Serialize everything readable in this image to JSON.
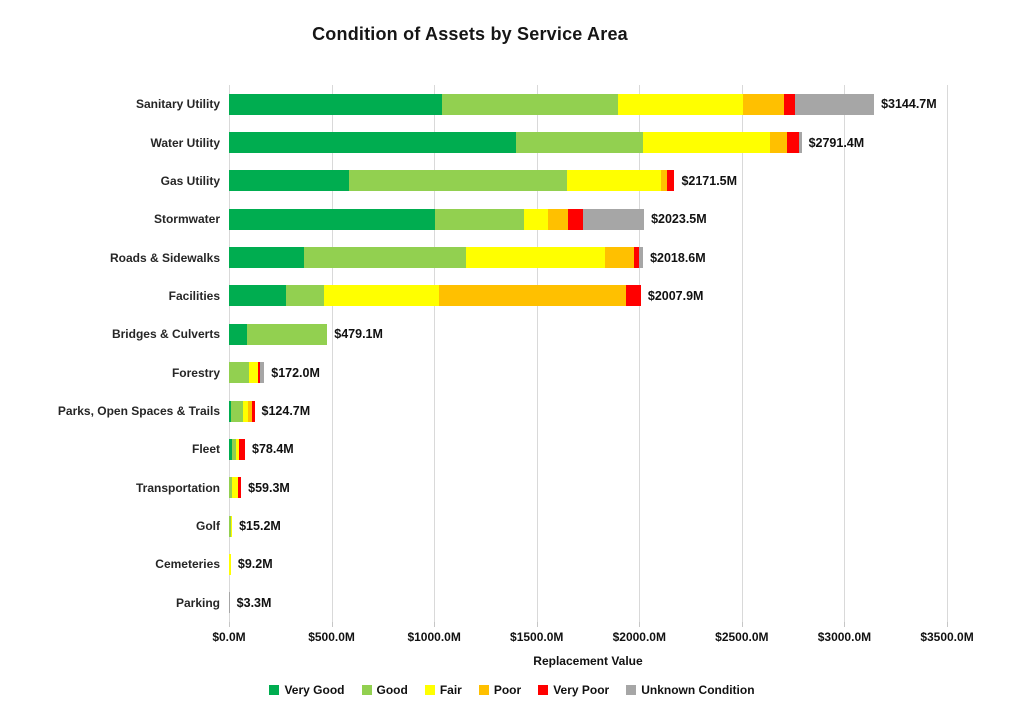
{
  "chart_data": {
    "type": "bar",
    "orientation": "horizontal",
    "stacked": true,
    "title": "Condition of Assets by Service Area",
    "xlabel": "Replacement Value",
    "xlim": [
      0,
      3500
    ],
    "grid": true,
    "legend_position": "bottom",
    "x_ticks": [
      "$0.0M",
      "$500.0M",
      "$1000.0M",
      "$1500.0M",
      "$2000.0M",
      "$2500.0M",
      "$3000.0M",
      "$3500.0M"
    ],
    "x_tick_values": [
      0,
      500,
      1000,
      1500,
      2000,
      2500,
      3000,
      3500
    ],
    "series_names": [
      "Very Good",
      "Good",
      "Fair",
      "Poor",
      "Very Poor",
      "Unknown Condition"
    ],
    "series_colors": [
      "#00AD50",
      "#92D050",
      "#FFFF00",
      "#FFC000",
      "#FF0000",
      "#A6A6A6"
    ],
    "rows": [
      {
        "category": "Sanitary Utility",
        "total": 3144.7,
        "total_label": "$3144.7M",
        "values": [
          1040,
          854,
          611,
          199,
          53,
          387.7
        ]
      },
      {
        "category": "Water Utility",
        "total": 2791.4,
        "total_label": "$2791.4M",
        "values": [
          1400,
          620,
          617,
          84,
          60,
          10.4
        ]
      },
      {
        "category": "Gas Utility",
        "total": 2171.5,
        "total_label": "$2171.5M",
        "values": [
          583,
          1064,
          457,
          29,
          38.5,
          0
        ]
      },
      {
        "category": "Stormwater",
        "total": 2023.5,
        "total_label": "$2023.5M",
        "values": [
          1005,
          434,
          115,
          100,
          70,
          299.5
        ]
      },
      {
        "category": "Roads & Sidewalks",
        "total": 2018.6,
        "total_label": "$2018.6M",
        "values": [
          366,
          790,
          676,
          142,
          23,
          21.6
        ]
      },
      {
        "category": "Facilities",
        "total": 2007.9,
        "total_label": "$2007.9M",
        "values": [
          277,
          186,
          560,
          912,
          72.9,
          0
        ]
      },
      {
        "category": "Bridges & Culverts",
        "total": 479.1,
        "total_label": "$479.1M",
        "values": [
          86,
          393.1,
          0,
          0,
          0,
          0
        ]
      },
      {
        "category": "Forestry",
        "total": 172.0,
        "total_label": "$172.0M",
        "values": [
          0,
          99,
          44,
          0,
          9.5,
          19.5
        ]
      },
      {
        "category": "Parks, Open Spaces & Trails",
        "total": 124.7,
        "total_label": "$124.7M",
        "values": [
          12,
          55,
          28,
          15,
          14.7,
          0
        ]
      },
      {
        "category": "Fleet",
        "total": 78.4,
        "total_label": "$78.4M",
        "values": [
          14,
          20,
          15,
          0,
          29.4,
          0
        ]
      },
      {
        "category": "Transportation",
        "total": 59.3,
        "total_label": "$59.3M",
        "values": [
          0,
          15,
          30,
          0,
          14.3,
          0
        ]
      },
      {
        "category": "Golf",
        "total": 15.2,
        "total_label": "$15.2M",
        "values": [
          0,
          8,
          7.2,
          0,
          0,
          0
        ]
      },
      {
        "category": "Cemeteries",
        "total": 9.2,
        "total_label": "$9.2M",
        "values": [
          0,
          0,
          9.2,
          0,
          0,
          0
        ]
      },
      {
        "category": "Parking",
        "total": 3.3,
        "total_label": "$3.3M",
        "values": [
          0,
          0,
          0,
          0,
          0,
          3.3
        ]
      }
    ]
  }
}
